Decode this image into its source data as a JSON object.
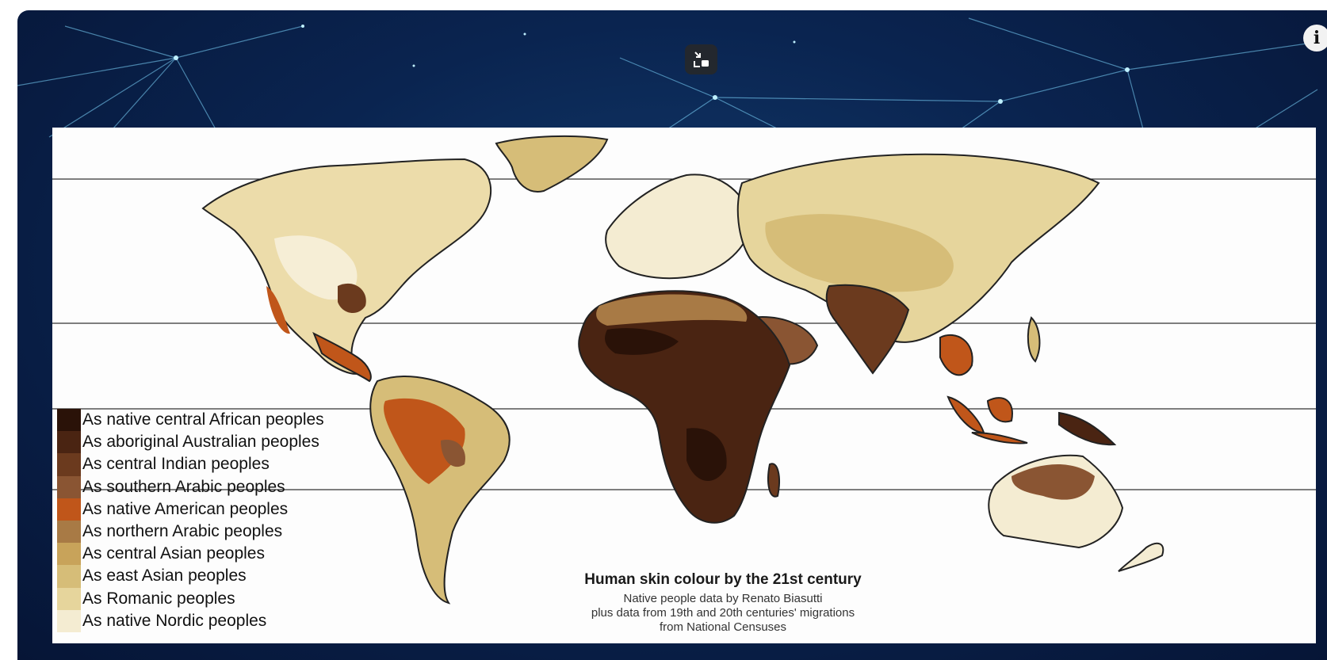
{
  "controls": {
    "fullscreen_icon": "exit-fullscreen-icon",
    "info_icon": "info-icon",
    "info_glyph": "i"
  },
  "map": {
    "title": "Human skin colour by the 21st century",
    "subtitle_lines": [
      "Native people data by Renato Biasutti",
      "plus data from 19th and 20th centuries' migrations",
      "from National Censuses"
    ],
    "legend": [
      {
        "label": "As native central African peoples",
        "color": "#2a1208"
      },
      {
        "label": "As aboriginal Australian peoples",
        "color": "#4a2412"
      },
      {
        "label": "As central Indian peoples",
        "color": "#6b3a1e"
      },
      {
        "label": "As southern Arabic peoples",
        "color": "#8a5533"
      },
      {
        "label": "As native American peoples",
        "color": "#c0561a"
      },
      {
        "label": "As northern Arabic peoples",
        "color": "#a87a45"
      },
      {
        "label": "As central Asian peoples",
        "color": "#c8a35a"
      },
      {
        "label": "As east Asian peoples",
        "color": "#d6bd78"
      },
      {
        "label": "As Romanic peoples",
        "color": "#e6d59c"
      },
      {
        "label": "As native Nordic peoples",
        "color": "#f4ecd2"
      }
    ]
  }
}
